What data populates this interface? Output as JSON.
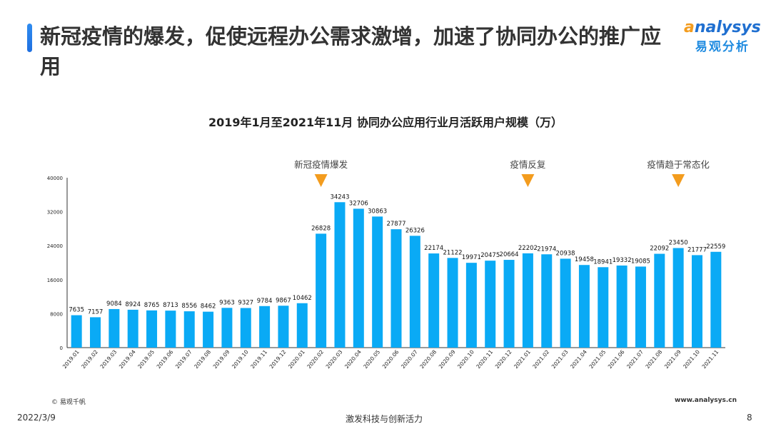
{
  "header": {
    "title": "新冠疫情的爆发，促使远程办公需求激增，加速了协同办公的推广应用",
    "logo_en_a": "a",
    "logo_en_rest": "nalysys",
    "logo_cn": "易观分析"
  },
  "footer": {
    "source": "© 易观千帆",
    "website": "www.analysys.cn",
    "date": "2022/3/9",
    "slogan": "激发科技与创新活力",
    "page": "8"
  },
  "chart_data": {
    "type": "bar",
    "title": "2019年1月至2021年11月 协同办公应用行业月活跃用户规模（万）",
    "categories": [
      "2019.01",
      "2019.02",
      "2019.03",
      "2019.04",
      "2019.05",
      "2019.06",
      "2019.07",
      "2019.08",
      "2019.09",
      "2019.10",
      "2019.11",
      "2019.12",
      "2020.01",
      "2020.02",
      "2020.03",
      "2020.04",
      "2020.05",
      "2020.06",
      "2020.07",
      "2020.08",
      "2020.09",
      "2020.10",
      "2020.11",
      "2020.12",
      "2021.01",
      "2021.02",
      "2021.03",
      "2021.04",
      "2021.05",
      "2021.06",
      "2021.07",
      "2021.08",
      "2021.09",
      "2021.10",
      "2021.11"
    ],
    "values": [
      7635,
      7157,
      9084,
      8924,
      8765,
      8713,
      8556,
      8462,
      9363,
      9327,
      9784,
      9867,
      10462,
      26828,
      34243,
      32706,
      30863,
      27877,
      26326,
      22174,
      21122,
      19971,
      20475,
      20664,
      22202,
      21974,
      20938,
      19458,
      18941,
      19332,
      19085,
      22092,
      23450,
      21777,
      22559
    ],
    "ylim": [
      0,
      40000
    ],
    "yticks": [
      0,
      8000,
      16000,
      24000,
      32000,
      40000
    ],
    "bar_color": "#0aaaf5",
    "annotation_color": "#f39c1e",
    "annotations": [
      {
        "category": "2020.02",
        "text": "新冠疫情爆发"
      },
      {
        "category": "2021.01",
        "text": "疫情反复"
      },
      {
        "category": "2021.09",
        "text": "疫情趋于常态化"
      }
    ]
  }
}
